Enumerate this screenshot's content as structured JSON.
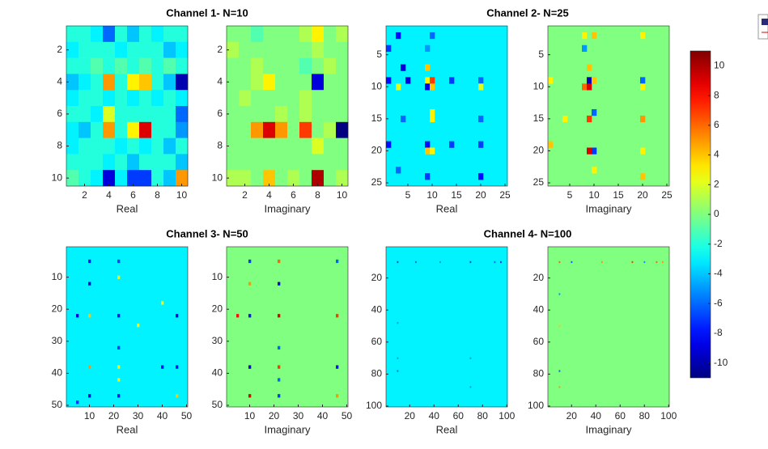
{
  "chart_data": [
    {
      "type": "heatmap",
      "title": "Channel 1- N=10",
      "xlim": [
        0.5,
        10.5
      ],
      "ylim": [
        0.5,
        10.5
      ],
      "xticks": [
        2,
        4,
        6,
        8,
        10
      ],
      "yticks": [
        2,
        4,
        6,
        8,
        10
      ],
      "panels": [
        {
          "xlabel": "Real",
          "matrix": [
            [
              -2,
              -2,
              -3,
              -6,
              -2,
              -4,
              -2,
              -3,
              -2,
              -2
            ],
            [
              -3,
              -2,
              -2,
              -2,
              -3,
              -2,
              -2,
              -2,
              -4,
              -3
            ],
            [
              -2,
              -2,
              -1,
              -2,
              -1,
              -2,
              -1,
              -2,
              -1,
              -2
            ],
            [
              -4,
              -3,
              -2,
              5,
              -2,
              3,
              4,
              -2,
              -4,
              -10
            ],
            [
              -3,
              -2,
              -2,
              -3,
              -2,
              -3,
              -2,
              -3,
              -2,
              -3
            ],
            [
              -2,
              -2,
              -3,
              2,
              -2,
              -2,
              -2,
              -2,
              -2,
              -6
            ],
            [
              -3,
              -4,
              -2,
              5,
              -2,
              3,
              9,
              -2,
              -2,
              -5
            ],
            [
              -3,
              -2,
              -2,
              -2,
              -3,
              -2,
              -3,
              -2,
              -4,
              -2
            ],
            [
              -2,
              -2,
              -2,
              -3,
              -2,
              -4,
              -2,
              -2,
              -2,
              -4
            ],
            [
              -1,
              -2,
              -3,
              -9,
              -3,
              -7,
              -7,
              -2,
              -4,
              5
            ]
          ]
        },
        {
          "xlabel": "Imaginary",
          "matrix": [
            [
              0,
              0,
              -1,
              0,
              0,
              0,
              1,
              3,
              0,
              1
            ],
            [
              1,
              0,
              0,
              0,
              0,
              0,
              0,
              1,
              0,
              0
            ],
            [
              0,
              0,
              1,
              0,
              0,
              0,
              -1,
              0,
              1,
              0
            ],
            [
              0,
              0,
              1,
              3,
              0,
              0,
              0,
              -9,
              0,
              0
            ],
            [
              0,
              1,
              0,
              0,
              0,
              0,
              1,
              0,
              0,
              0
            ],
            [
              0,
              0,
              0,
              0,
              1,
              0,
              1,
              0,
              0,
              0
            ],
            [
              0,
              0,
              5,
              9,
              5,
              0,
              7,
              0,
              1,
              -11
            ],
            [
              0,
              0,
              0,
              0,
              0,
              0,
              0,
              2,
              0,
              0
            ],
            [
              0,
              0,
              0,
              0,
              0,
              0,
              0,
              0,
              0,
              0
            ],
            [
              1,
              1,
              0,
              4,
              0,
              1,
              0,
              10,
              0,
              1
            ]
          ]
        }
      ]
    },
    {
      "type": "heatmap",
      "title": "Channel 2- N=25",
      "xlim": [
        0.5,
        25.5
      ],
      "ylim": [
        0.5,
        25.5
      ],
      "xticks": [
        5,
        10,
        15,
        20,
        25
      ],
      "yticks": [
        5,
        10,
        15,
        20,
        25
      ],
      "panels": [
        {
          "xlabel": "Real",
          "background": -3,
          "cells": [
            [
              2,
              3,
              -8
            ],
            [
              2,
              10,
              -6
            ],
            [
              4,
              1,
              -7
            ],
            [
              4,
              9,
              -5
            ],
            [
              7,
              4,
              -9
            ],
            [
              7,
              9,
              4
            ],
            [
              9,
              1,
              -8
            ],
            [
              9,
              5,
              -9
            ],
            [
              9,
              9,
              3
            ],
            [
              9,
              10,
              7
            ],
            [
              9,
              14,
              -7
            ],
            [
              9,
              20,
              -6
            ],
            [
              10,
              3,
              2
            ],
            [
              10,
              9,
              -9
            ],
            [
              10,
              10,
              4
            ],
            [
              10,
              20,
              2
            ],
            [
              14,
              10,
              3
            ],
            [
              15,
              4,
              -6
            ],
            [
              15,
              10,
              3
            ],
            [
              15,
              20,
              -6
            ],
            [
              19,
              1,
              -8
            ],
            [
              19,
              9,
              -8
            ],
            [
              19,
              14,
              -7
            ],
            [
              19,
              20,
              -7
            ],
            [
              20,
              9,
              4
            ],
            [
              20,
              10,
              3
            ],
            [
              23,
              3,
              -6
            ],
            [
              24,
              9,
              -7
            ],
            [
              24,
              20,
              -8
            ]
          ]
        },
        {
          "xlabel": "Imaginary",
          "background": 0,
          "cells": [
            [
              2,
              8,
              3
            ],
            [
              2,
              10,
              4
            ],
            [
              2,
              20,
              3
            ],
            [
              4,
              8,
              -5
            ],
            [
              7,
              9,
              4
            ],
            [
              9,
              1,
              3
            ],
            [
              9,
              9,
              -10
            ],
            [
              9,
              10,
              4
            ],
            [
              9,
              20,
              -6
            ],
            [
              10,
              8,
              6
            ],
            [
              10,
              9,
              9
            ],
            [
              10,
              20,
              3
            ],
            [
              14,
              10,
              -6
            ],
            [
              15,
              4,
              3
            ],
            [
              15,
              9,
              7
            ],
            [
              15,
              20,
              5
            ],
            [
              19,
              1,
              4
            ],
            [
              20,
              9,
              9
            ],
            [
              20,
              10,
              -7
            ],
            [
              20,
              20,
              3
            ],
            [
              23,
              10,
              3
            ],
            [
              24,
              20,
              4
            ]
          ]
        }
      ]
    },
    {
      "type": "heatmap",
      "title": "Channel 3- N=50",
      "xlim": [
        0.5,
        50.5
      ],
      "ylim": [
        0.5,
        50.5
      ],
      "xticks": [
        10,
        20,
        30,
        40,
        50
      ],
      "yticks": [
        10,
        20,
        30,
        40,
        50
      ],
      "panels": [
        {
          "xlabel": "Real",
          "background": -3,
          "cells": [
            [
              5,
              10,
              -8
            ],
            [
              5,
              22,
              -7
            ],
            [
              10,
              22,
              3
            ],
            [
              12,
              10,
              -9
            ],
            [
              18,
              40,
              3
            ],
            [
              22,
              5,
              -9
            ],
            [
              22,
              10,
              4
            ],
            [
              22,
              22,
              -8
            ],
            [
              22,
              46,
              -9
            ],
            [
              25,
              30,
              3
            ],
            [
              32,
              22,
              -7
            ],
            [
              38,
              10,
              5
            ],
            [
              38,
              22,
              3
            ],
            [
              38,
              40,
              -8
            ],
            [
              38,
              46,
              -8
            ],
            [
              42,
              22,
              3
            ],
            [
              47,
              10,
              -9
            ],
            [
              47,
              22,
              -8
            ],
            [
              47,
              46,
              4
            ],
            [
              49,
              5,
              -7
            ]
          ]
        },
        {
          "xlabel": "Imaginary",
          "background": 0,
          "cells": [
            [
              5,
              10,
              -7
            ],
            [
              5,
              22,
              6
            ],
            [
              5,
              46,
              -6
            ],
            [
              12,
              10,
              5
            ],
            [
              12,
              22,
              -9
            ],
            [
              22,
              5,
              8
            ],
            [
              22,
              10,
              -8
            ],
            [
              22,
              22,
              9
            ],
            [
              22,
              46,
              7
            ],
            [
              32,
              22,
              -6
            ],
            [
              38,
              10,
              -9
            ],
            [
              38,
              22,
              7
            ],
            [
              38,
              46,
              -8
            ],
            [
              42,
              22,
              -6
            ],
            [
              47,
              10,
              9
            ],
            [
              47,
              22,
              -7
            ],
            [
              47,
              46,
              5
            ]
          ]
        }
      ]
    },
    {
      "type": "heatmap",
      "title": "Channel 4- N=100",
      "xlim": [
        0.5,
        100.5
      ],
      "ylim": [
        0.5,
        100.5
      ],
      "xticks": [
        20,
        40,
        60,
        80,
        100
      ],
      "yticks": [
        20,
        40,
        60,
        80,
        100
      ],
      "panels": [
        {
          "xlabel": "Real",
          "background": -3,
          "cells": [
            [
              10,
              10,
              -7
            ],
            [
              10,
              25,
              -6
            ],
            [
              10,
              45,
              -5
            ],
            [
              10,
              70,
              -7
            ],
            [
              10,
              90,
              -6
            ],
            [
              10,
              95,
              -7
            ],
            [
              48,
              10,
              -5
            ],
            [
              70,
              10,
              -5
            ],
            [
              78,
              10,
              -6
            ],
            [
              70,
              70,
              -5
            ],
            [
              88,
              70,
              -5
            ]
          ]
        },
        {
          "xlabel": "Imaginary",
          "background": 0,
          "cells": [
            [
              10,
              10,
              6
            ],
            [
              10,
              20,
              -6
            ],
            [
              10,
              45,
              5
            ],
            [
              10,
              70,
              7
            ],
            [
              10,
              80,
              -5
            ],
            [
              10,
              90,
              6
            ],
            [
              10,
              95,
              5
            ],
            [
              30,
              10,
              -5
            ],
            [
              50,
              10,
              4
            ],
            [
              78,
              10,
              -6
            ],
            [
              88,
              10,
              5
            ]
          ]
        }
      ]
    }
  ],
  "colorbar": {
    "lim": [
      -11,
      11
    ],
    "ticks": [
      -10,
      -8,
      -6,
      -4,
      -2,
      0,
      2,
      4,
      6,
      8,
      10
    ]
  }
}
